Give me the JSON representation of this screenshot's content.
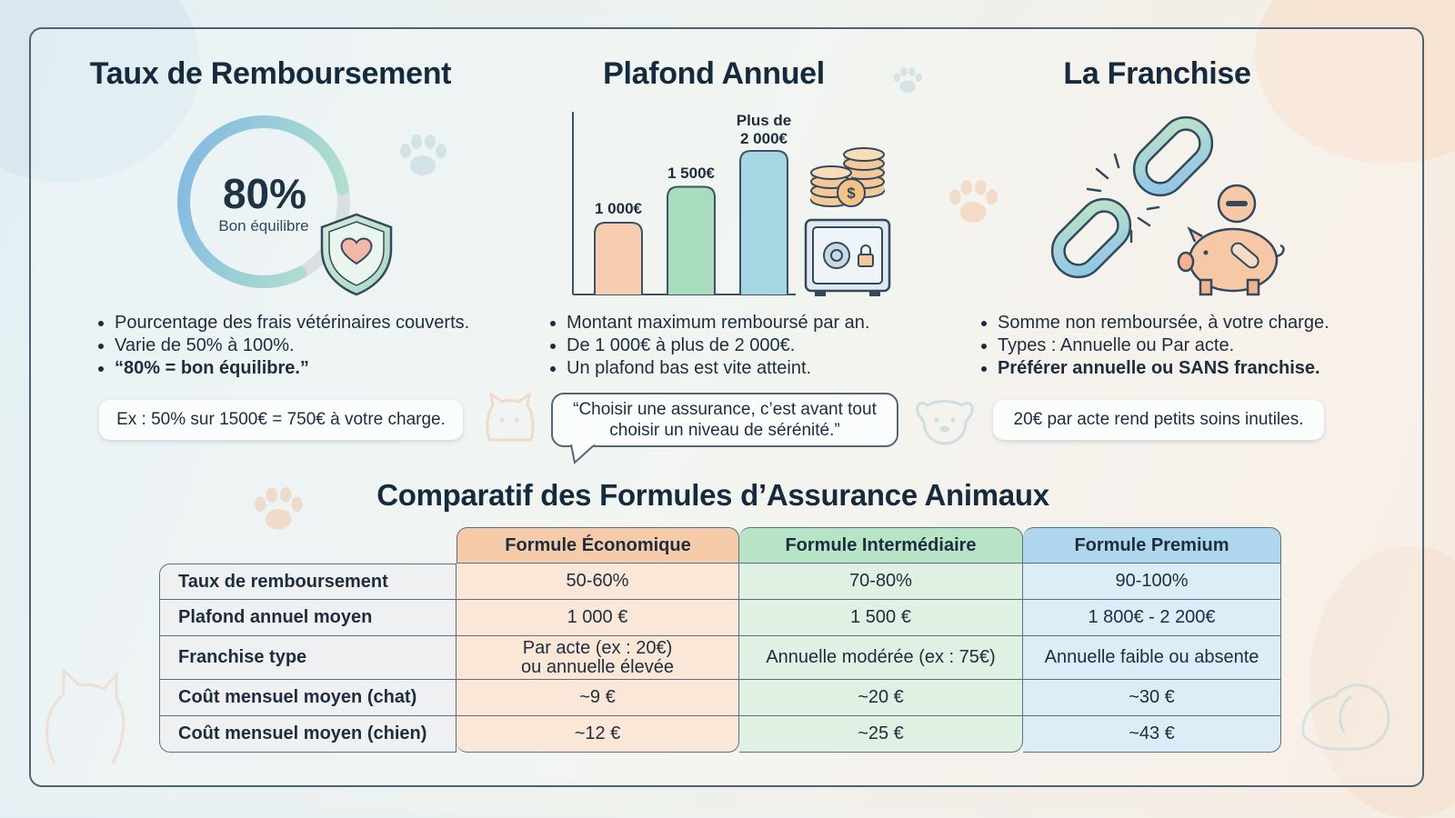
{
  "columns": [
    {
      "title": "Taux de Remboursement",
      "ring": {
        "percent": 80,
        "value_label": "80%",
        "sub_label": "Bon équilibre"
      },
      "bullets": [
        "Pourcentage des frais vétérinaires couverts.",
        "Varie de 50% à 100%.",
        "“80% = bon équilibre.”"
      ],
      "example": "Ex : 50% sur 1500€ = 750€ à votre charge."
    },
    {
      "title": "Plafond Annuel",
      "bars": [
        {
          "label": "1 000€",
          "value": 1000,
          "color": "#f6cdb0"
        },
        {
          "label": "1 500€",
          "value": 1500,
          "color": "#a9dcbd"
        },
        {
          "label_line1": "Plus de",
          "label_line2": "2 000€",
          "value": 2000,
          "color": "#a6d6e2"
        }
      ],
      "bullets": [
        "Montant maximum remboursé par an.",
        "De 1 000€ à plus de 2 000€.",
        "Un plafond bas est vite atteint."
      ],
      "quote_line1": "“Choisir une assurance, c’est avant tout",
      "quote_line2": "choisir un niveau de sérénité.”"
    },
    {
      "title": "La Franchise",
      "bullets": [
        "Somme non remboursée, à votre charge.",
        "Types : Annuelle ou Par acte.",
        "Préférer annuelle ou SANS franchise."
      ],
      "example": "20€ par acte rend petits soins inutiles."
    }
  ],
  "comparison": {
    "title": "Comparatif des Formules d’Assurance Animaux",
    "headers": [
      "Formule Économique",
      "Formule Intermédiaire",
      "Formule Premium"
    ],
    "header_colors": [
      "#f5cba9",
      "#b7e3c6",
      "#aed6ec"
    ],
    "body_colors": [
      "#fbe7d8",
      "#dff1e2",
      "#ddedf7"
    ],
    "rows": [
      {
        "label": "Taux de remboursement",
        "values": [
          "50-60%",
          "70-80%",
          "90-100%"
        ]
      },
      {
        "label": "Plafond annuel moyen",
        "values": [
          "1 000 €",
          "1 500 €",
          "1 800€ - 2 200€"
        ]
      },
      {
        "label": "Franchise type",
        "values": [
          "Par acte (ex : 20€)\nou annuelle élevée",
          "Annuelle modérée (ex : 75€)",
          "Annuelle faible ou absente"
        ]
      },
      {
        "label": "Coût mensuel moyen (chat)",
        "values": [
          "~9 €",
          "~20 €",
          "~30 €"
        ]
      },
      {
        "label": "Coût mensuel moyen (chien)",
        "values": [
          "~12 €",
          "~25 €",
          "~43 €"
        ]
      }
    ]
  },
  "icons": [
    "shield-heart-icon",
    "coins-icon",
    "safe-icon",
    "broken-chain-icon",
    "piggy-bank-icon",
    "paw-icon",
    "cat-icon",
    "dog-icon"
  ]
}
